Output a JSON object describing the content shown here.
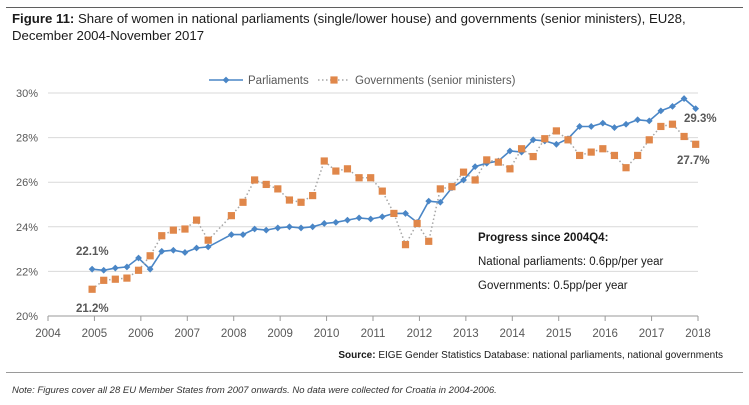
{
  "header": {
    "label": "Figure 11:",
    "title": "Share of women in national parliaments (single/lower house) and governments (senior ministers), EU28,",
    "title_line2": "December 2004-November 2017"
  },
  "footer": {
    "source_label": "Source:",
    "source_text": "EIGE Gender Statistics Database: national parliaments, national governments",
    "note": "Note: Figures cover all 28 EU Member States from 2007 onwards. No data were collected for Croatia in 2004-2006."
  },
  "chart_data": {
    "type": "line",
    "ylim": [
      20,
      30
    ],
    "xlim": [
      2004,
      2018
    ],
    "grid": true,
    "legend_position": "top-center",
    "x_ticks": [
      "2004",
      "2005",
      "2006",
      "2007",
      "2008",
      "2009",
      "2010",
      "2011",
      "2012",
      "2013",
      "2014",
      "2015",
      "2016",
      "2017",
      "2018"
    ],
    "y_ticks": [
      "20%",
      "22%",
      "24%",
      "26%",
      "28%",
      "30%"
    ],
    "series": [
      {
        "name": "Parliaments",
        "color": "#4a86c6",
        "marker": "diamond",
        "line_style": "solid",
        "x": [
          2004.95,
          2005.2,
          2005.45,
          2005.7,
          2005.95,
          2006.2,
          2006.45,
          2006.7,
          2006.95,
          2007.2,
          2007.45,
          2007.95,
          2008.2,
          2008.45,
          2008.7,
          2008.95,
          2009.2,
          2009.45,
          2009.7,
          2009.95,
          2010.2,
          2010.45,
          2010.7,
          2010.95,
          2011.2,
          2011.45,
          2011.7,
          2011.95,
          2012.2,
          2012.45,
          2012.7,
          2012.95,
          2013.2,
          2013.45,
          2013.7,
          2013.95,
          2014.2,
          2014.45,
          2014.7,
          2014.95,
          2015.2,
          2015.45,
          2015.7,
          2015.95,
          2016.2,
          2016.45,
          2016.7,
          2016.95,
          2017.2,
          2017.45,
          2017.7,
          2017.95
        ],
        "values": [
          22.1,
          22.05,
          22.15,
          22.2,
          22.6,
          22.1,
          22.9,
          22.95,
          22.85,
          23.05,
          23.1,
          23.65,
          23.65,
          23.9,
          23.85,
          23.95,
          24.0,
          23.95,
          24.0,
          24.15,
          24.2,
          24.3,
          24.4,
          24.35,
          24.45,
          24.6,
          24.6,
          24.2,
          25.15,
          25.1,
          25.75,
          26.1,
          26.7,
          26.85,
          26.95,
          27.4,
          27.35,
          27.9,
          27.85,
          27.7,
          27.95,
          28.5,
          28.5,
          28.65,
          28.45,
          28.6,
          28.8,
          28.75,
          29.2,
          29.4,
          29.75,
          29.3
        ]
      },
      {
        "name": "Governments (senior ministers)",
        "color": "#e0874a",
        "marker": "square",
        "line_style": "dotted",
        "x": [
          2004.95,
          2005.2,
          2005.45,
          2005.7,
          2005.95,
          2006.2,
          2006.45,
          2006.7,
          2006.95,
          2007.2,
          2007.45,
          2007.95,
          2008.2,
          2008.45,
          2008.7,
          2008.95,
          2009.2,
          2009.45,
          2009.7,
          2009.95,
          2010.2,
          2010.45,
          2010.7,
          2010.95,
          2011.2,
          2011.45,
          2011.7,
          2011.95,
          2012.2,
          2012.45,
          2012.7,
          2012.95,
          2013.2,
          2013.45,
          2013.7,
          2013.95,
          2014.2,
          2014.45,
          2014.7,
          2014.95,
          2015.2,
          2015.45,
          2015.7,
          2015.95,
          2016.2,
          2016.45,
          2016.7,
          2016.95,
          2017.2,
          2017.45,
          2017.7,
          2017.95
        ],
        "values": [
          21.2,
          21.6,
          21.65,
          21.7,
          22.05,
          22.7,
          23.6,
          23.85,
          23.9,
          24.3,
          23.4,
          24.5,
          25.1,
          26.1,
          25.9,
          25.7,
          25.2,
          25.1,
          25.4,
          26.95,
          26.5,
          26.6,
          26.2,
          26.2,
          25.6,
          24.6,
          23.2,
          24.15,
          23.35,
          25.7,
          25.8,
          26.45,
          26.1,
          27.0,
          26.9,
          26.6,
          27.5,
          27.15,
          27.95,
          28.3,
          27.9,
          27.2,
          27.35,
          27.5,
          27.2,
          26.65,
          27.2,
          27.9,
          28.5,
          28.6,
          28.05,
          27.7
        ]
      }
    ],
    "annotations": {
      "parliaments_start": "22.1%",
      "governments_start": "21.2%",
      "parliaments_end": "29.3%",
      "governments_end": "27.7%",
      "progress_title": "Progress since 2004Q4:",
      "progress_parliaments": "National parliaments: 0.6pp/per year",
      "progress_governments": "Governments: 0.5pp/per year"
    }
  }
}
